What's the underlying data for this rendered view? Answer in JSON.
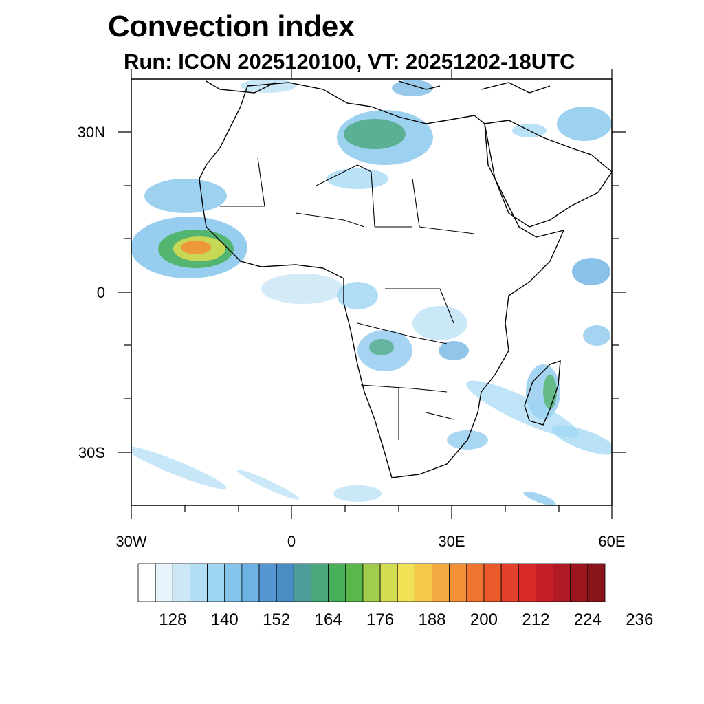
{
  "title": "Convection index",
  "subtitle": "Run: ICON 2025120100,  VT: 20251202-18UTC",
  "map": {
    "lon_range": [
      -30,
      60
    ],
    "lat_range": [
      -40,
      40
    ],
    "y_ticks": [
      "30N",
      "0",
      "30S"
    ],
    "x_ticks": [
      "30W",
      "0",
      "30E",
      "60E"
    ]
  },
  "colorbar": {
    "labels": [
      "128",
      "140",
      "152",
      "164",
      "176",
      "188",
      "200",
      "212",
      "224",
      "236"
    ],
    "colors": [
      "#ffffff",
      "#e8f4fb",
      "#cce8f6",
      "#b4def5",
      "#9dd5f3",
      "#85c5ec",
      "#6cb2e3",
      "#5597d2",
      "#4a8cc4",
      "#4c9c9c",
      "#4aa87a",
      "#48b05a",
      "#5ab84a",
      "#a2cc4c",
      "#d4dc52",
      "#f0e254",
      "#f6c84a",
      "#f4aa40",
      "#f29038",
      "#ee7430",
      "#e85a2a",
      "#e24028",
      "#d82a28",
      "#c41e26",
      "#b01a24",
      "#9c1620",
      "#8a141c"
    ]
  }
}
